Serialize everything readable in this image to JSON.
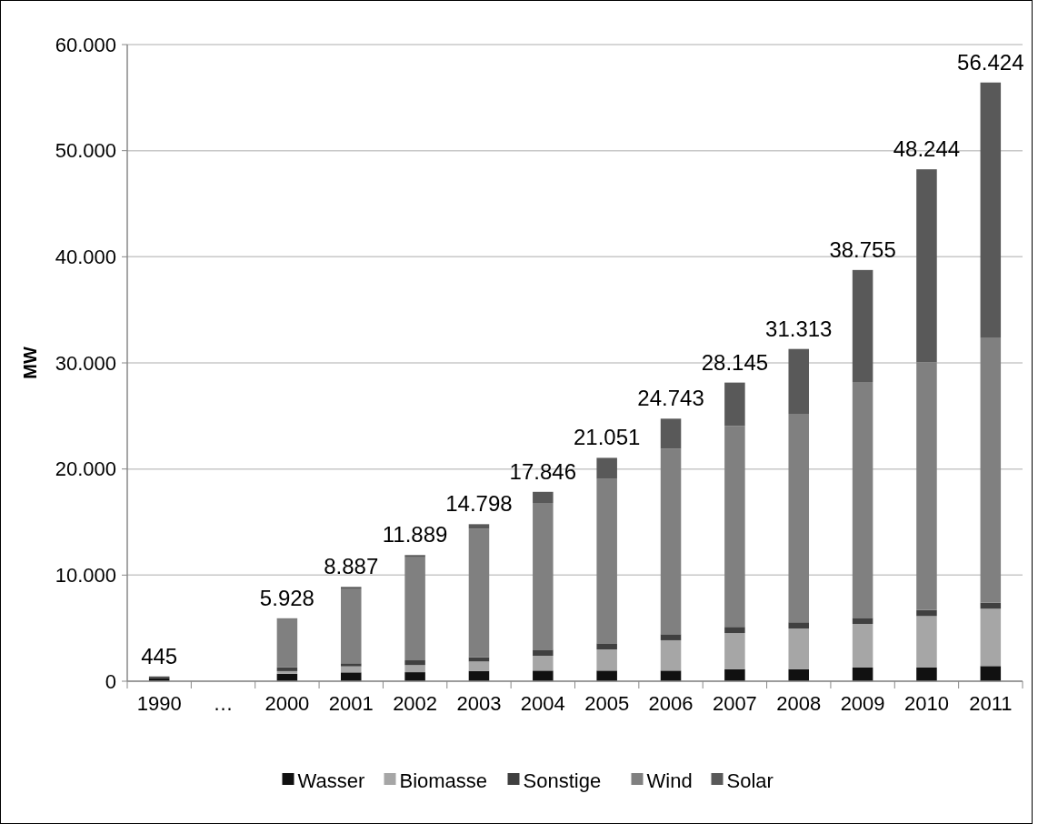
{
  "chart_data": {
    "type": "bar",
    "stacked": true,
    "ylabel": "MW",
    "categories": [
      "1990",
      "…",
      "2000",
      "2001",
      "2002",
      "2003",
      "2004",
      "2005",
      "2006",
      "2007",
      "2008",
      "2009",
      "2010",
      "2011"
    ],
    "series": [
      {
        "name": "Wasser",
        "color": "#111111",
        "values": [
          300,
          null,
          700,
          830,
          850,
          970,
          1000,
          1000,
          1000,
          1140,
          1140,
          1290,
          1290,
          1430
        ]
      },
      {
        "name": "Biomasse",
        "color": "#a6a6a6",
        "values": [
          null,
          null,
          250,
          570,
          670,
          890,
          1400,
          2000,
          2860,
          3400,
          3830,
          4110,
          4850,
          5400
        ]
      },
      {
        "name": "Sonstige",
        "color": "#404040",
        "values": [
          145,
          null,
          350,
          290,
          450,
          390,
          570,
          570,
          570,
          580,
          580,
          570,
          570,
          570
        ]
      },
      {
        "name": "Wind",
        "color": "#808080",
        "values": [
          null,
          null,
          4550,
          6990,
          9710,
          12120,
          13830,
          15490,
          17490,
          18940,
          19650,
          22230,
          23350,
          24940
        ]
      },
      {
        "name": "Solar",
        "color": "#595959",
        "values": [
          null,
          null,
          78,
          207,
          209,
          428,
          1046,
          1991,
          2823,
          4085,
          6113,
          10555,
          18184,
          24084
        ]
      }
    ],
    "totals": [
      "445",
      null,
      "5.928",
      "8.887",
      "11.889",
      "14.798",
      "17.846",
      "21.051",
      "24.743",
      "28.145",
      "31.313",
      "38.755",
      "48.244",
      "56.424"
    ],
    "ylim": [
      0,
      60000
    ],
    "yticks": [
      {
        "value": 0,
        "label": "0"
      },
      {
        "value": 10000,
        "label": "10.000"
      },
      {
        "value": 20000,
        "label": "20.000"
      },
      {
        "value": 30000,
        "label": "30.000"
      },
      {
        "value": 40000,
        "label": "40.000"
      },
      {
        "value": 50000,
        "label": "50.000"
      },
      {
        "value": 60000,
        "label": "60.000"
      }
    ],
    "grid": "y",
    "legend": "bottom"
  }
}
